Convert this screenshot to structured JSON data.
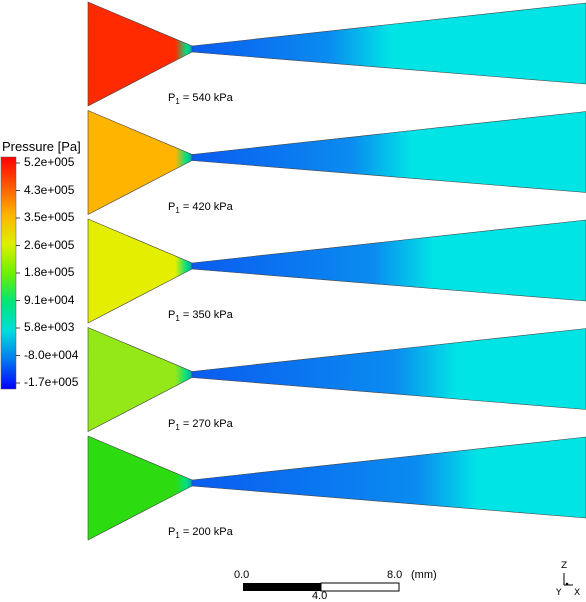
{
  "legend": {
    "title": "Pressure [Pa]",
    "ticks": [
      "5.2e+005",
      "4.3e+005",
      "3.5e+005",
      "2.6e+005",
      "1.8e+005",
      "9.1e+004",
      "5.8e+003",
      "-8.0e+004",
      "-1.7e+005"
    ],
    "colors": [
      "#ff0000",
      "#ff5a00",
      "#ffb400",
      "#dcf000",
      "#6ef000",
      "#00e678",
      "#00dcdc",
      "#0078f0",
      "#0000ff"
    ]
  },
  "cases": [
    {
      "pressure": "540 kPa",
      "inlet_color": "#ff2a00",
      "outlet_color": "#00e4e6"
    },
    {
      "pressure": "420 kPa",
      "inlet_color": "#ffb400",
      "outlet_color": "#00e4e6"
    },
    {
      "pressure": "350 kPa",
      "inlet_color": "#e4ee00",
      "outlet_color": "#00e4e6"
    },
    {
      "pressure": "270 kPa",
      "inlet_color": "#94e818",
      "outlet_color": "#00e4e6"
    },
    {
      "pressure": "200 kPa",
      "inlet_color": "#2cdc10",
      "outlet_color": "#00e4e6"
    }
  ],
  "case_label_prefix": "P",
  "case_label_sub": "1",
  "scale_bar": {
    "left": "0.0",
    "right": "8.0",
    "unit": "(mm)",
    "middle": "4.0"
  },
  "axes": {
    "z": "Z",
    "y": "Y",
    "x": "X"
  }
}
